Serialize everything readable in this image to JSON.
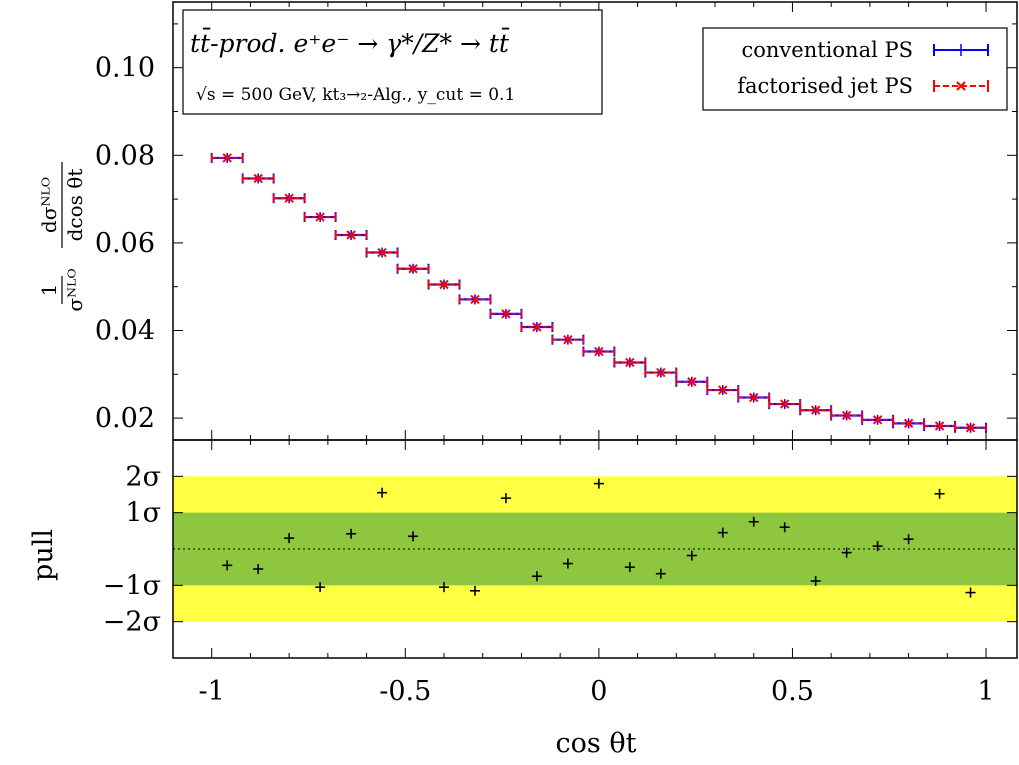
{
  "chart_data": [
    {
      "type": "line",
      "panel": "upper",
      "title": "tt̄-prod.  e⁺e⁻ → γ*/Z* → tt̄",
      "subtitle": "√s = 500 GeV,  kt₃→₂-Alg.,  y_cut = 0.1",
      "xlabel": "cos θt",
      "ylabel": "1/σ^NLO dσ^NLO/dcos θt",
      "xlim": [
        -1.1,
        1.08
      ],
      "ylim": [
        0.015,
        0.115
      ],
      "yticks": [
        "0.02",
        "0.04",
        "0.06",
        "0.08",
        "0.10"
      ],
      "legend_position": "top-right",
      "x": [
        -0.96,
        -0.88,
        -0.8,
        -0.72,
        -0.64,
        -0.56,
        -0.48,
        -0.4,
        -0.32,
        -0.24,
        -0.16,
        -0.08,
        0.0,
        0.08,
        0.16,
        0.24,
        0.32,
        0.4,
        0.48,
        0.56,
        0.64,
        0.72,
        0.8,
        0.88,
        0.96
      ],
      "bin_half_width": 0.04,
      "series": [
        {
          "name": "conventional PS",
          "color": "#0000ff",
          "marker": "plus",
          "values": [
            0.0794,
            0.0747,
            0.0702,
            0.0659,
            0.0618,
            0.0578,
            0.0541,
            0.0505,
            0.0471,
            0.0438,
            0.0408,
            0.0379,
            0.0352,
            0.0327,
            0.0304,
            0.0283,
            0.0264,
            0.0247,
            0.0232,
            0.0218,
            0.0206,
            0.0196,
            0.0188,
            0.0182,
            0.0178
          ]
        },
        {
          "name": "factorised jet PS",
          "color": "#ff0000",
          "marker": "cross",
          "values": [
            0.0794,
            0.0747,
            0.0702,
            0.0659,
            0.0618,
            0.0578,
            0.0541,
            0.0505,
            0.0471,
            0.0438,
            0.0408,
            0.0379,
            0.0352,
            0.0327,
            0.0304,
            0.0283,
            0.0264,
            0.0247,
            0.0232,
            0.0218,
            0.0206,
            0.0196,
            0.0188,
            0.0182,
            0.0178
          ]
        }
      ]
    },
    {
      "type": "scatter",
      "panel": "lower",
      "ylabel": "pull",
      "xlabel": "cos θt",
      "xlim": [
        -1.1,
        1.08
      ],
      "ylim": [
        -3.0,
        3.0
      ],
      "xticks": [
        "-1",
        "-0.5",
        "0",
        "0.5",
        "1"
      ],
      "yticks": [
        "2σ",
        "1σ",
        "−1σ",
        "−2σ"
      ],
      "bands": [
        {
          "range": [
            -2,
            2
          ],
          "color": "#ffff44"
        },
        {
          "range": [
            -1,
            1
          ],
          "color": "#8ec63f"
        }
      ],
      "zero_line": "dotted",
      "x": [
        -0.96,
        -0.88,
        -0.8,
        -0.72,
        -0.64,
        -0.56,
        -0.48,
        -0.4,
        -0.32,
        -0.24,
        -0.16,
        -0.08,
        0.0,
        0.08,
        0.16,
        0.24,
        0.32,
        0.4,
        0.48,
        0.56,
        0.64,
        0.72,
        0.8,
        0.88,
        0.96
      ],
      "values": [
        -0.45,
        -0.55,
        0.3,
        -1.05,
        0.42,
        1.55,
        0.35,
        -1.05,
        -1.15,
        1.4,
        -0.75,
        -0.4,
        1.8,
        -0.5,
        -0.68,
        -0.18,
        0.45,
        0.75,
        0.6,
        -0.88,
        -0.1,
        0.08,
        0.27,
        1.52,
        -1.2
      ]
    }
  ]
}
